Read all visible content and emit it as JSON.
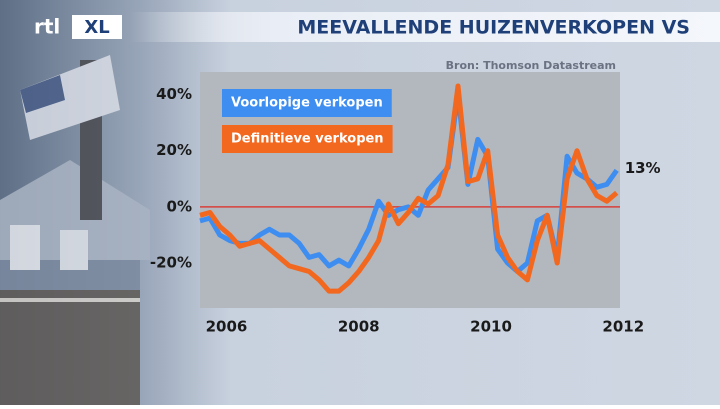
{
  "logo": [
    "rtl",
    "XL"
  ],
  "chart_data": {
    "type": "line",
    "title": "MEEVALLENDE HUIZENVERKOPEN VS",
    "source": "Bron: Thomson Datastream",
    "x": [
      2005.6,
      2005.75,
      2005.9,
      2006.05,
      2006.2,
      2006.35,
      2006.5,
      2006.65,
      2006.8,
      2006.95,
      2007.1,
      2007.25,
      2007.4,
      2007.55,
      2007.7,
      2007.85,
      2008.0,
      2008.15,
      2008.3,
      2008.45,
      2008.6,
      2008.75,
      2008.9,
      2009.05,
      2009.2,
      2009.35,
      2009.5,
      2009.65,
      2009.8,
      2009.95,
      2010.1,
      2010.25,
      2010.4,
      2010.55,
      2010.7,
      2010.85,
      2011.0,
      2011.15,
      2011.3,
      2011.45,
      2011.6,
      2011.75,
      2011.9
    ],
    "series": [
      {
        "name": "Voorlopige verkopen",
        "color": "#3d8ef0",
        "values": [
          -5,
          -4,
          -10,
          -12,
          -13,
          -13,
          -10,
          -8,
          -10,
          -10,
          -13,
          -18,
          -17,
          -21,
          -19,
          -21,
          -15,
          -8,
          2,
          -3,
          -1,
          0,
          -3,
          6,
          10,
          14,
          40,
          8,
          24,
          18,
          -15,
          -20,
          -23,
          -20,
          -5,
          -3,
          -18,
          18,
          12,
          10,
          7,
          8,
          13
        ]
      },
      {
        "name": "Definitieve verkopen",
        "color": "#f2681f",
        "values": [
          -3,
          -2,
          -7,
          -10,
          -14,
          -13,
          -12,
          -15,
          -18,
          -21,
          -22,
          -23,
          -26,
          -30,
          -30,
          -27,
          -23,
          -18,
          -12,
          1,
          -6,
          -2,
          3,
          1,
          4,
          15,
          43,
          9,
          10,
          20,
          -10,
          -18,
          -23,
          -26,
          -12,
          -3,
          -20,
          10,
          20,
          10,
          4,
          2,
          5
        ]
      }
    ],
    "annotations": [
      {
        "text": "13%",
        "x": 2011.9,
        "y": 13
      }
    ],
    "xlim": [
      2005.6,
      2011.95
    ],
    "xticks": [
      2006,
      2008,
      2010,
      2012
    ],
    "ylim": [
      -36,
      48
    ],
    "yticks": [
      {
        "value": -20,
        "label": "-20%"
      },
      {
        "value": 0,
        "label": "0%"
      },
      {
        "value": 20,
        "label": "20%"
      },
      {
        "value": 40,
        "label": "40%"
      }
    ],
    "zero_line": {
      "value": 0,
      "color": "#d8403a"
    }
  }
}
